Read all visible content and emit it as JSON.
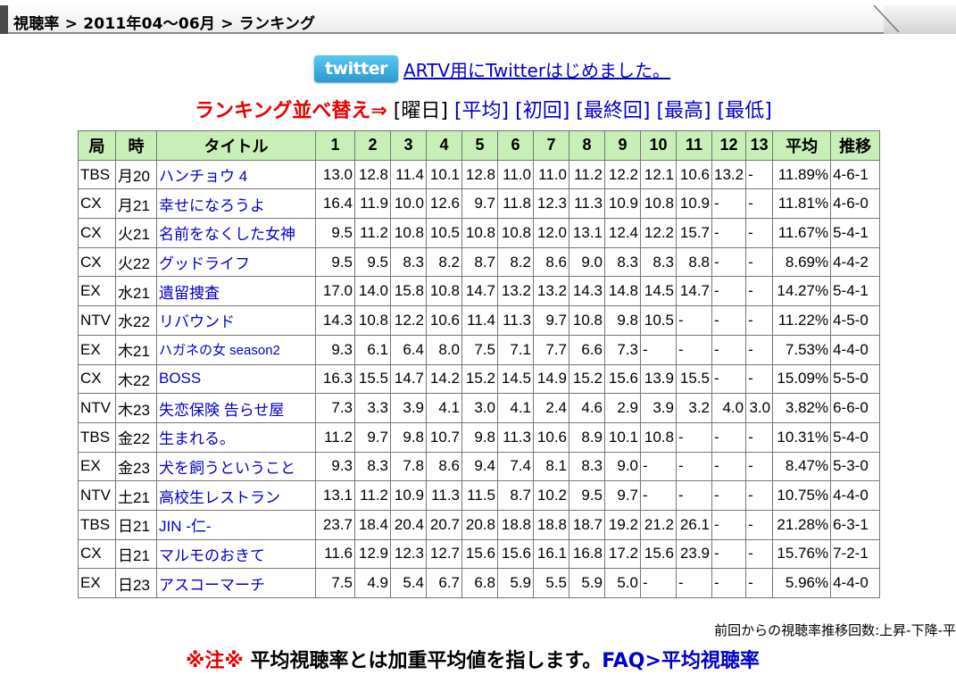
{
  "breadcrumb": "視聴率 > 2011年04〜06月 > ランキング",
  "twitter": {
    "logo": "twitter",
    "link_text": "ARTV用にTwitterはじめました。"
  },
  "sort": {
    "label": "ランキング並べ替え⇒",
    "current": "[曜日]",
    "links": [
      "[平均]",
      "[初回]",
      "[最終回]",
      "[最高]",
      "[最低]"
    ]
  },
  "table": {
    "headers": [
      "局",
      "時",
      "タイトル",
      "1",
      "2",
      "3",
      "4",
      "5",
      "6",
      "7",
      "8",
      "9",
      "10",
      "11",
      "12",
      "13",
      "平均",
      "推移"
    ],
    "rows": [
      [
        "TBS",
        "月20",
        "ハンチョウ 4",
        "13.0",
        "12.8",
        "11.4",
        "10.1",
        "12.8",
        "11.0",
        "11.0",
        "11.2",
        "12.2",
        "12.1",
        "10.6",
        "13.2",
        "-",
        "11.89%",
        "4-6-1"
      ],
      [
        "CX",
        "月21",
        "幸せになろうよ",
        "16.4",
        "11.9",
        "10.0",
        "12.6",
        "9.7",
        "11.8",
        "12.3",
        "11.3",
        "10.9",
        "10.8",
        "10.9",
        "-",
        "-",
        "11.81%",
        "4-6-0"
      ],
      [
        "CX",
        "火21",
        "名前をなくした女神",
        "9.5",
        "11.2",
        "10.8",
        "10.5",
        "10.8",
        "10.8",
        "12.0",
        "13.1",
        "12.4",
        "12.2",
        "15.7",
        "-",
        "-",
        "11.67%",
        "5-4-1"
      ],
      [
        "CX",
        "火22",
        "グッドライフ",
        "9.5",
        "9.5",
        "8.3",
        "8.2",
        "8.7",
        "8.2",
        "8.6",
        "9.0",
        "8.3",
        "8.3",
        "8.8",
        "-",
        "-",
        "8.69%",
        "4-4-2"
      ],
      [
        "EX",
        "水21",
        "遺留捜査",
        "17.0",
        "14.0",
        "15.8",
        "10.8",
        "14.7",
        "13.2",
        "13.2",
        "14.3",
        "14.8",
        "14.5",
        "14.7",
        "-",
        "-",
        "14.27%",
        "5-4-1"
      ],
      [
        "NTV",
        "水22",
        "リバウンド",
        "14.3",
        "10.8",
        "12.2",
        "10.6",
        "11.4",
        "11.3",
        "9.7",
        "10.8",
        "9.8",
        "10.5",
        "-",
        "-",
        "-",
        "11.22%",
        "4-5-0"
      ],
      [
        "EX",
        "木21",
        "ハガネの女 season2",
        "9.3",
        "6.1",
        "6.4",
        "8.0",
        "7.5",
        "7.1",
        "7.7",
        "6.6",
        "7.3",
        "-",
        "-",
        "-",
        "-",
        "7.53%",
        "4-4-0"
      ],
      [
        "CX",
        "木22",
        "BOSS",
        "16.3",
        "15.5",
        "14.7",
        "14.2",
        "15.2",
        "14.5",
        "14.9",
        "15.2",
        "15.6",
        "13.9",
        "15.5",
        "-",
        "-",
        "15.09%",
        "5-5-0"
      ],
      [
        "NTV",
        "木23",
        "失恋保険 告らせ屋",
        "7.3",
        "3.3",
        "3.9",
        "4.1",
        "3.0",
        "4.1",
        "2.4",
        "4.6",
        "2.9",
        "3.9",
        "3.2",
        "4.0",
        "3.0",
        "3.82%",
        "6-6-0"
      ],
      [
        "TBS",
        "金22",
        "生まれる。",
        "11.2",
        "9.7",
        "9.8",
        "10.7",
        "9.8",
        "11.3",
        "10.6",
        "8.9",
        "10.1",
        "10.8",
        "-",
        "-",
        "-",
        "10.31%",
        "5-4-0"
      ],
      [
        "EX",
        "金23",
        "犬を飼うということ",
        "9.3",
        "8.3",
        "7.8",
        "8.6",
        "9.4",
        "7.4",
        "8.1",
        "8.3",
        "9.0",
        "-",
        "-",
        "-",
        "-",
        "8.47%",
        "5-3-0"
      ],
      [
        "NTV",
        "土21",
        "高校生レストラン",
        "13.1",
        "11.2",
        "10.9",
        "11.3",
        "11.5",
        "8.7",
        "10.2",
        "9.5",
        "9.7",
        "-",
        "-",
        "-",
        "-",
        "10.75%",
        "4-4-0"
      ],
      [
        "TBS",
        "日21",
        "JIN -仁-",
        "23.7",
        "18.4",
        "20.4",
        "20.7",
        "20.8",
        "18.8",
        "18.8",
        "18.7",
        "19.2",
        "21.2",
        "26.1",
        "-",
        "-",
        "21.28%",
        "6-3-1"
      ],
      [
        "CX",
        "日21",
        "マルモのおきて",
        "11.6",
        "12.9",
        "12.3",
        "12.7",
        "15.6",
        "15.6",
        "16.1",
        "16.8",
        "17.2",
        "15.6",
        "23.9",
        "-",
        "-",
        "15.76%",
        "7-2-1"
      ],
      [
        "EX",
        "日23",
        "アスコーマーチ",
        "7.5",
        "4.9",
        "5.4",
        "6.7",
        "6.8",
        "5.9",
        "5.5",
        "5.9",
        "5.0",
        "-",
        "-",
        "-",
        "-",
        "5.96%",
        "4-4-0"
      ]
    ]
  },
  "note": "前回からの視聴率推移回数:上昇-下降-平",
  "warning": {
    "mark": "※注※",
    "text": " 平均視聴率とは加重平均値を指します。",
    "link": "FAQ>平均視聴率"
  }
}
